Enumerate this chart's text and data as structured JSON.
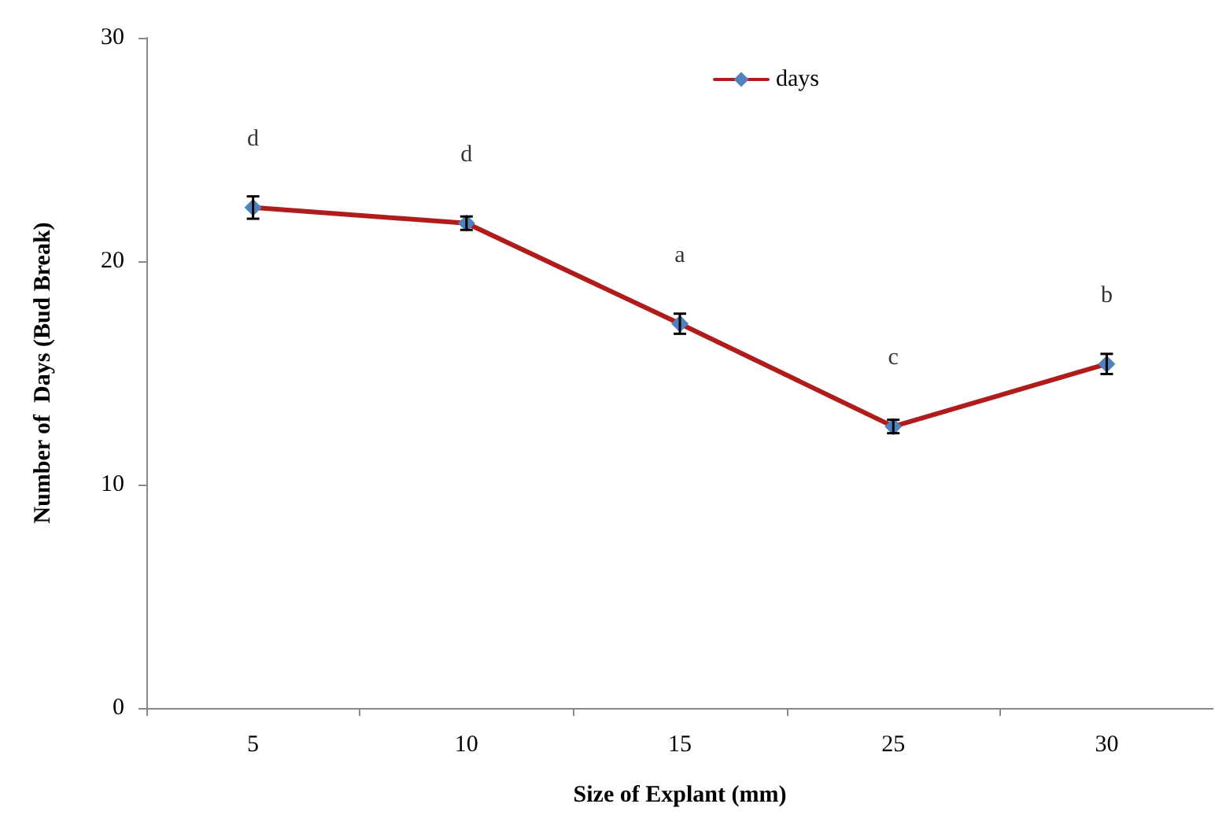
{
  "chart_data": {
    "type": "line",
    "xlabel": "Size of Explant (mm)",
    "ylabel": "Number of  Days (Bud Break)",
    "categories": [
      "5",
      "10",
      "15",
      "25",
      "30"
    ],
    "series": [
      {
        "name": "days",
        "color": "#b01c1c",
        "values": [
          22.4,
          21.7,
          17.2,
          12.6,
          15.4
        ],
        "errors": [
          0.5,
          0.3,
          0.45,
          0.3,
          0.45
        ]
      }
    ],
    "ylim": [
      0,
      30
    ],
    "yticks": [
      0,
      10,
      20,
      30
    ],
    "grid": false,
    "legend": "top",
    "marker": "diamond",
    "line_style": "solid",
    "annotations": [
      {
        "text": "d",
        "x": "5",
        "y": 22.4
      },
      {
        "text": "d",
        "x": "10",
        "y": 21.7
      },
      {
        "text": "a",
        "x": "15",
        "y": 17.2
      },
      {
        "text": "c",
        "x": "25",
        "y": 12.6
      },
      {
        "text": "b",
        "x": "30",
        "y": 15.4
      }
    ]
  }
}
